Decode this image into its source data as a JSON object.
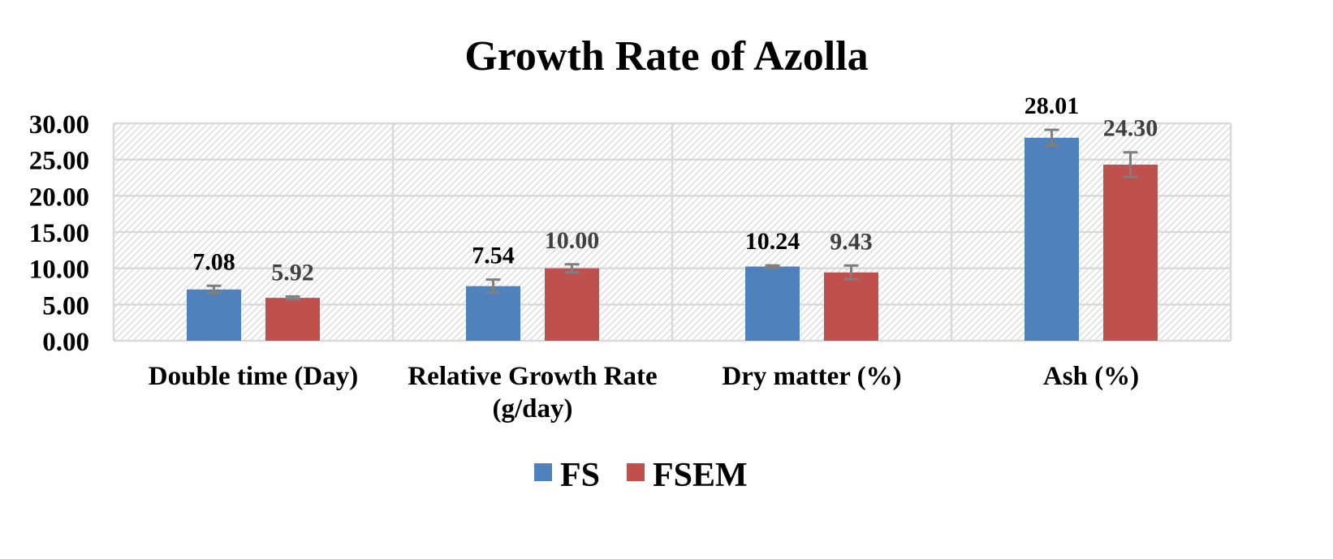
{
  "chart_data": {
    "type": "bar",
    "title": "Growth Rate of Azolla",
    "xlabel": "",
    "ylabel": "",
    "ylim": [
      0,
      30
    ],
    "yticks": [
      0,
      5,
      10,
      15,
      20,
      25,
      30
    ],
    "ytick_labels": [
      "0.00",
      "5.00",
      "10.00",
      "15.00",
      "20.00",
      "25.00",
      "30.00"
    ],
    "categories": [
      [
        "Double time (Day)"
      ],
      [
        "Relative Growth Rate",
        "(g/day)"
      ],
      [
        "Dry matter (%)"
      ],
      [
        "Ash (%)"
      ]
    ],
    "series": [
      {
        "name": "FS",
        "color": "#4F81BD",
        "values": [
          7.08,
          7.54,
          10.24,
          28.01
        ],
        "labels": [
          "7.08",
          "7.54",
          "10.24",
          "28.01"
        ],
        "error": [
          0.5,
          0.9,
          0.15,
          1.1
        ]
      },
      {
        "name": "FSEM",
        "color": "#C0504D",
        "values": [
          5.92,
          10.0,
          9.43,
          24.3
        ],
        "labels": [
          "5.92",
          "10.00",
          "9.43",
          "24.30"
        ],
        "error": [
          0.2,
          0.55,
          0.95,
          1.7
        ]
      }
    ],
    "grid": true,
    "background_pattern": "diagonal-hatch",
    "legend": "bottom-center",
    "error_bar_color": "#7F7F7F",
    "gridline_color": "#D9D9D9"
  }
}
